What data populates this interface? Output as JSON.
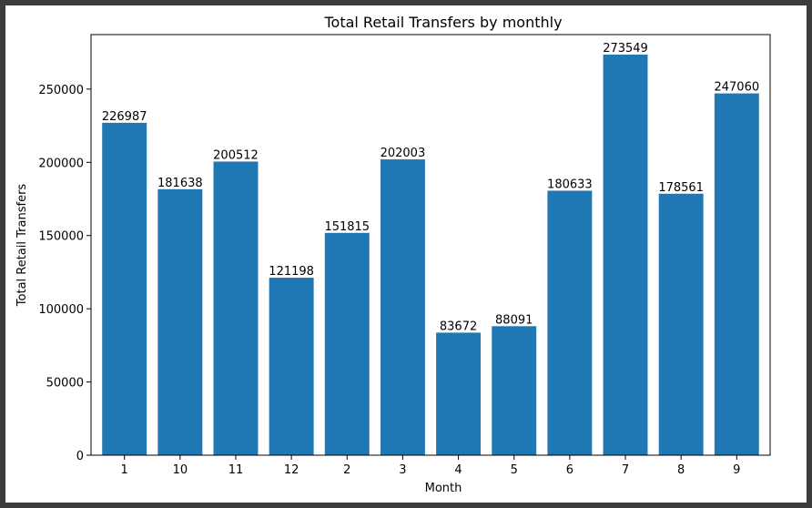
{
  "chart_data": {
    "type": "bar",
    "title": "Total Retail Transfers by monthly",
    "xlabel": "Month",
    "ylabel": "Total Retail Transfers",
    "categories": [
      "1",
      "10",
      "11",
      "12",
      "2",
      "3",
      "4",
      "5",
      "6",
      "7",
      "8",
      "9"
    ],
    "values": [
      226987,
      181638,
      200512,
      121198,
      151815,
      202003,
      83672,
      88091,
      180633,
      273549,
      178561,
      247060
    ],
    "ylim": [
      0,
      287226
    ],
    "yticks": [
      0,
      50000,
      100000,
      150000,
      200000,
      250000
    ],
    "grid": false,
    "legend": "none",
    "bar_color": "#1f77b4"
  }
}
